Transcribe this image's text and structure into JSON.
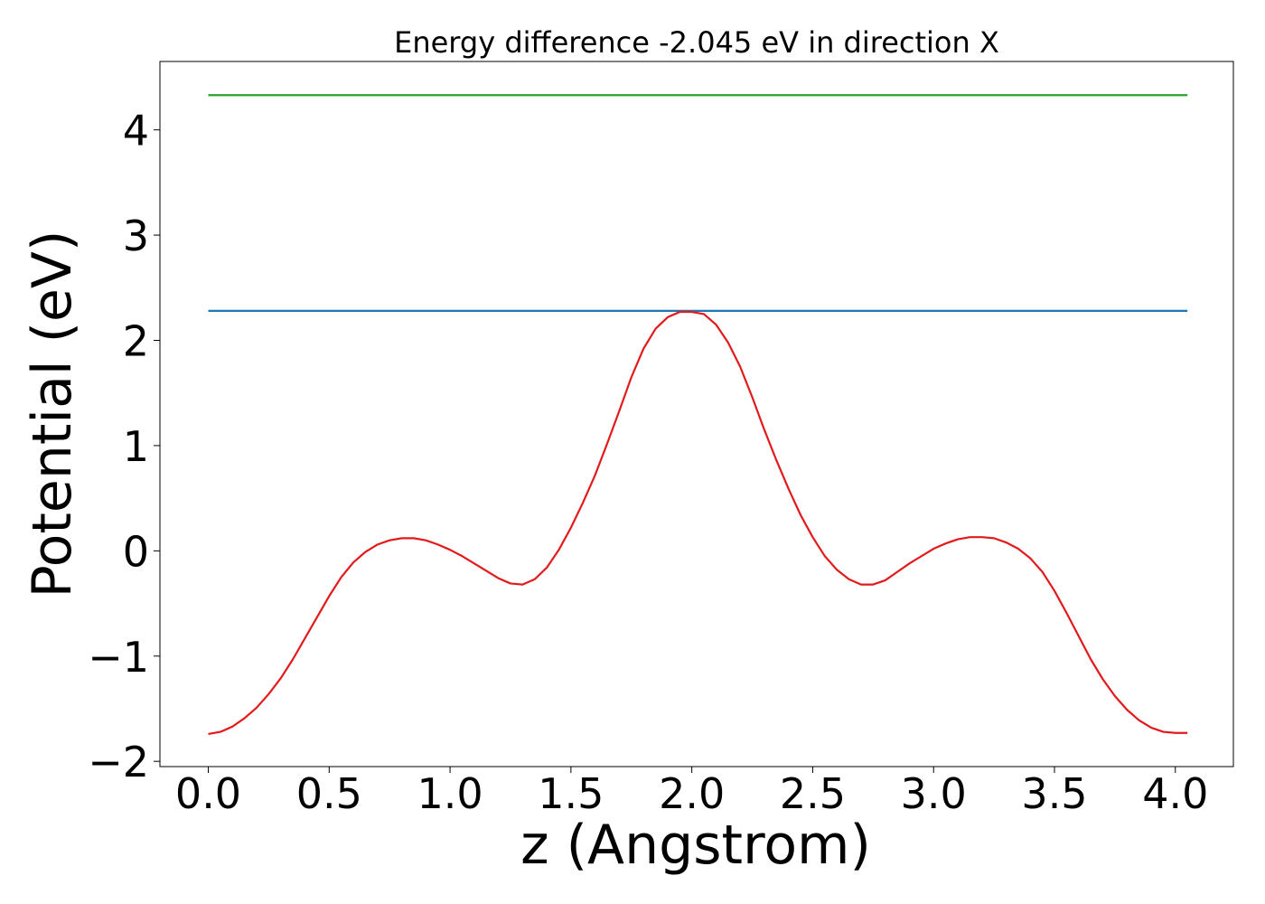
{
  "chart_data": {
    "type": "line",
    "title": "Energy difference -2.045 eV in direction X",
    "xlabel": "z (Angstrom)",
    "ylabel": "Potential (eV)",
    "xlim": [
      -0.2,
      4.24
    ],
    "ylim": [
      -2.05,
      4.65
    ],
    "grid": false,
    "x_ticks": [
      0.0,
      0.5,
      1.0,
      1.5,
      2.0,
      2.5,
      3.0,
      3.5,
      4.0
    ],
    "x_tick_labels": [
      "0.0",
      "0.5",
      "1.0",
      "1.5",
      "2.0",
      "2.5",
      "3.0",
      "3.5",
      "4.0"
    ],
    "y_ticks": [
      -2,
      -1,
      0,
      1,
      2,
      3,
      4
    ],
    "y_tick_labels": [
      "−2",
      "−1",
      "0",
      "1",
      "2",
      "3",
      "4"
    ],
    "series": [
      {
        "color": "#2ca02c",
        "x": [
          0.0,
          4.05
        ],
        "y": [
          4.33,
          4.33
        ]
      },
      {
        "color": "#1f77b4",
        "x": [
          0.0,
          4.05
        ],
        "y": [
          2.28,
          2.28
        ]
      },
      {
        "color": "#e31a1c",
        "x": [
          0.0,
          0.05,
          0.1,
          0.15,
          0.2,
          0.25,
          0.3,
          0.35,
          0.4,
          0.45,
          0.5,
          0.55,
          0.6,
          0.65,
          0.7,
          0.75,
          0.8,
          0.85,
          0.9,
          0.95,
          1.0,
          1.05,
          1.1,
          1.15,
          1.2,
          1.25,
          1.3,
          1.35,
          1.4,
          1.45,
          1.5,
          1.55,
          1.6,
          1.65,
          1.7,
          1.75,
          1.8,
          1.85,
          1.9,
          1.95,
          2.0,
          2.05,
          2.1,
          2.15,
          2.2,
          2.25,
          2.3,
          2.35,
          2.4,
          2.45,
          2.5,
          2.55,
          2.6,
          2.65,
          2.7,
          2.75,
          2.8,
          2.85,
          2.9,
          2.95,
          3.0,
          3.05,
          3.1,
          3.15,
          3.2,
          3.25,
          3.3,
          3.35,
          3.4,
          3.45,
          3.5,
          3.55,
          3.6,
          3.65,
          3.7,
          3.75,
          3.8,
          3.85,
          3.9,
          3.95,
          4.0,
          4.05
        ],
        "y": [
          -1.74,
          -1.72,
          -1.67,
          -1.59,
          -1.49,
          -1.36,
          -1.21,
          -1.03,
          -0.83,
          -0.63,
          -0.43,
          -0.25,
          -0.11,
          -0.01,
          0.06,
          0.1,
          0.12,
          0.12,
          0.1,
          0.06,
          0.01,
          -0.05,
          -0.12,
          -0.19,
          -0.26,
          -0.31,
          -0.32,
          -0.27,
          -0.16,
          0.01,
          0.22,
          0.46,
          0.72,
          1.02,
          1.33,
          1.65,
          1.92,
          2.11,
          2.22,
          2.27,
          2.27,
          2.25,
          2.15,
          1.98,
          1.75,
          1.46,
          1.15,
          0.86,
          0.59,
          0.34,
          0.13,
          -0.05,
          -0.18,
          -0.27,
          -0.32,
          -0.32,
          -0.28,
          -0.2,
          -0.12,
          -0.05,
          0.02,
          0.07,
          0.11,
          0.13,
          0.13,
          0.12,
          0.08,
          0.02,
          -0.07,
          -0.2,
          -0.38,
          -0.59,
          -0.81,
          -1.03,
          -1.22,
          -1.38,
          -1.51,
          -1.61,
          -1.68,
          -1.72,
          -1.73,
          -1.73
        ]
      }
    ]
  }
}
